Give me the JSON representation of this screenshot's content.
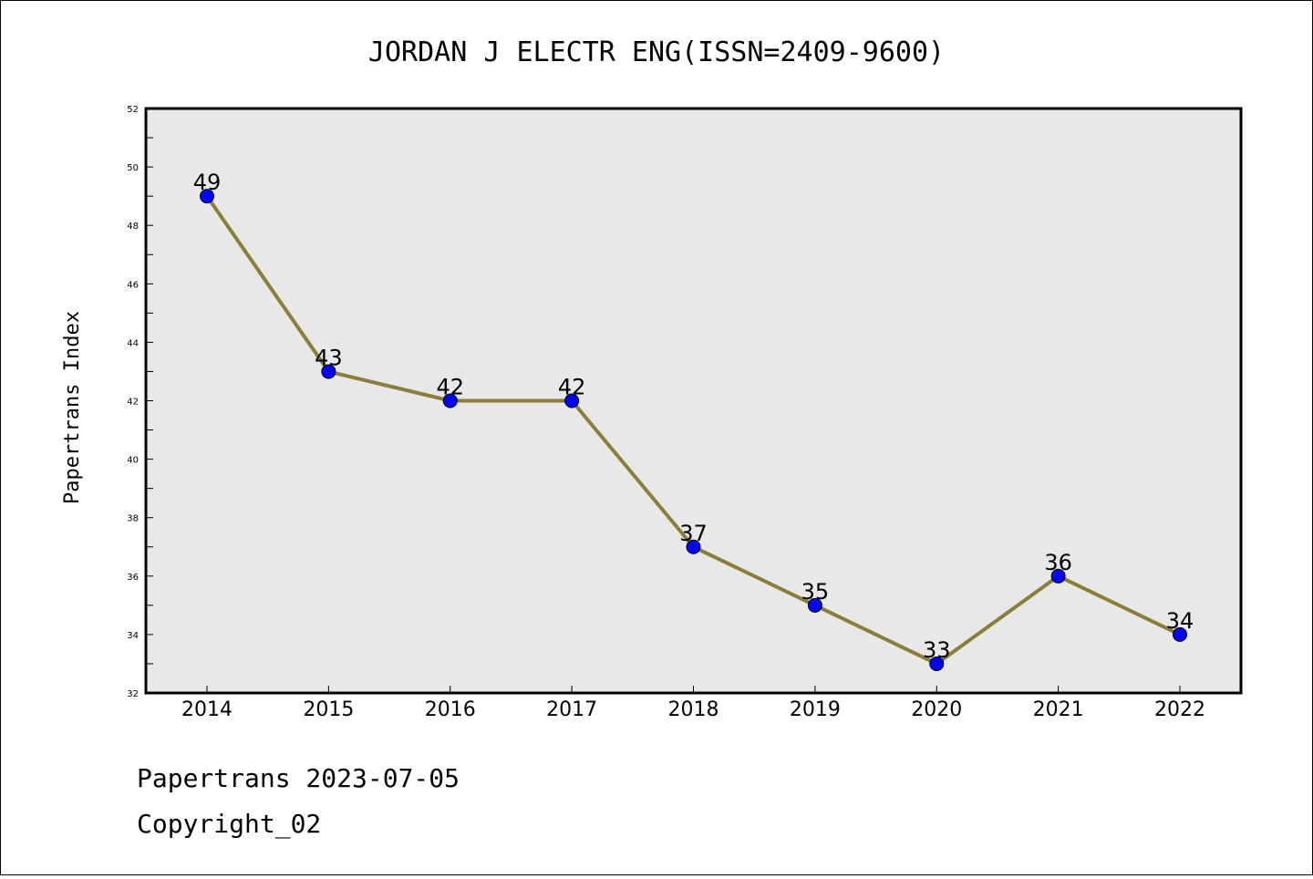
{
  "chart_data": {
    "type": "line",
    "title": "JORDAN J ELECTR ENG(ISSN=2409-9600)",
    "xlabel": "",
    "ylabel": "Papertrans Index",
    "categories": [
      "2014",
      "2015",
      "2016",
      "2017",
      "2018",
      "2019",
      "2020",
      "2021",
      "2022"
    ],
    "values": [
      49,
      43,
      42,
      42,
      37,
      35,
      33,
      36,
      34
    ],
    "ylim": [
      32,
      52
    ],
    "yticks": [
      32,
      34,
      36,
      38,
      40,
      42,
      44,
      46,
      48,
      50,
      52
    ],
    "grid": false,
    "legend": "none",
    "colors": {
      "line": "#8b7d3a",
      "marker": "#0000ff",
      "plot_background": "#e8e8e8"
    }
  },
  "footer": {
    "line1": "Papertrans 2023-07-05",
    "line2": "Copyright_02"
  }
}
